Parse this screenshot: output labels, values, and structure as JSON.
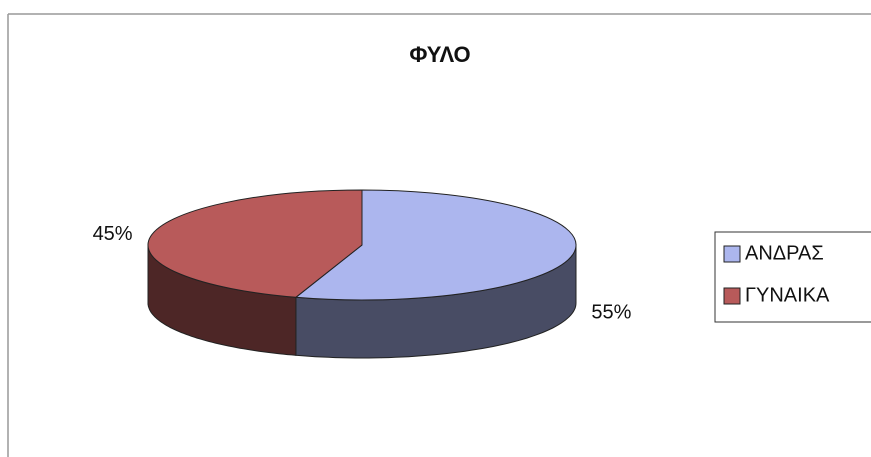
{
  "chart_data": {
    "type": "pie",
    "title": "ΦΥΛΟ",
    "categories": [
      "ΑΝΔΡΑΣ",
      "ΓΥΝΑΙΚΑ"
    ],
    "values": [
      55,
      45
    ],
    "value_labels": [
      "55%",
      "45%"
    ],
    "colors": [
      "#acb6ee",
      "#b85a5a"
    ],
    "legend": "right"
  }
}
